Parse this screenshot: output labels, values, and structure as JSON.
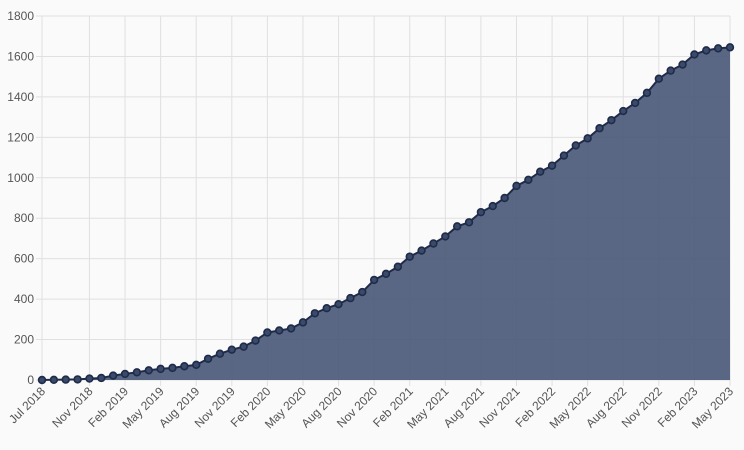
{
  "chart_data": {
    "type": "area",
    "x": [
      "Jul 2018",
      "Aug 2018",
      "Sep 2018",
      "Oct 2018",
      "Nov 2018",
      "Dec 2018",
      "Jan 2019",
      "Feb 2019",
      "Mar 2019",
      "Apr 2019",
      "May 2019",
      "Jun 2019",
      "Jul 2019",
      "Aug 2019",
      "Sep 2019",
      "Oct 2019",
      "Nov 2019",
      "Dec 2019",
      "Jan 2020",
      "Feb 2020",
      "Mar 2020",
      "Apr 2020",
      "May 2020",
      "Jun 2020",
      "Jul 2020",
      "Aug 2020",
      "Sep 2020",
      "Oct 2020",
      "Nov 2020",
      "Dec 2020",
      "Jan 2021",
      "Feb 2021",
      "Mar 2021",
      "Apr 2021",
      "May 2021",
      "Jun 2021",
      "Jul 2021",
      "Aug 2021",
      "Sep 2021",
      "Oct 2021",
      "Nov 2021",
      "Dec 2021",
      "Jan 2022",
      "Feb 2022",
      "Mar 2022",
      "Apr 2022",
      "May 2022",
      "Jun 2022",
      "Jul 2022",
      "Aug 2022",
      "Sep 2022",
      "Oct 2022",
      "Nov 2022",
      "Dec 2022",
      "Jan 2023",
      "Feb 2023",
      "Mar 2023",
      "Apr 2023",
      "May 2023"
    ],
    "values": [
      0,
      1,
      2,
      3,
      7,
      10,
      22,
      30,
      38,
      48,
      55,
      60,
      68,
      75,
      105,
      130,
      150,
      165,
      195,
      235,
      245,
      255,
      285,
      330,
      355,
      375,
      405,
      435,
      495,
      525,
      560,
      610,
      640,
      675,
      710,
      760,
      780,
      830,
      860,
      900,
      960,
      990,
      1030,
      1060,
      1110,
      1160,
      1195,
      1245,
      1285,
      1330,
      1370,
      1420,
      1490,
      1530,
      1560,
      1610,
      1630,
      1640,
      1645
    ],
    "tick_labels": [
      "Jul 2018",
      "Nov 2018",
      "Feb 2019",
      "May 2019",
      "Aug 2019",
      "Nov 2019",
      "Feb 2020",
      "May 2020",
      "Aug 2020",
      "Nov 2020",
      "Feb 2021",
      "May 2021",
      "Aug 2021",
      "Nov 2021",
      "Feb 2022",
      "May 2022",
      "Aug 2022",
      "Nov 2022",
      "Feb 2023",
      "May 2023"
    ],
    "y_ticks": [
      0,
      200,
      400,
      600,
      800,
      1000,
      1200,
      1400,
      1600,
      1800
    ],
    "ylim": [
      0,
      1800
    ],
    "title": "",
    "xlabel": "",
    "ylabel": "",
    "grid": true,
    "colors": {
      "fill": "#4b5a7a",
      "line": "#1f2b48",
      "point": "#1f2b48",
      "grid": "#e0e0e0",
      "axis_text": "#555555"
    }
  }
}
